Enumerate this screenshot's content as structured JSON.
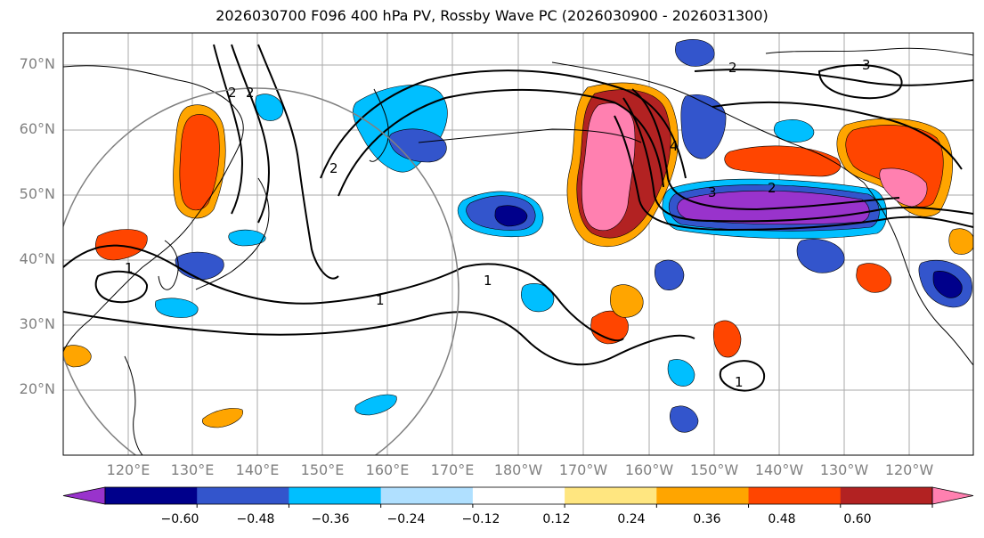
{
  "title": "2026030700 F096 400 hPa PV, Rossby Wave PC (2026030900 - 2026031300)",
  "latitude_labels": [
    "70°N",
    "60°N",
    "50°N",
    "40°N",
    "30°N",
    "20°N"
  ],
  "longitude_labels": [
    "120°E",
    "130°E",
    "140°E",
    "150°E",
    "160°E",
    "170°E",
    "180°W",
    "170°W",
    "160°W",
    "150°W",
    "140°W",
    "130°W",
    "120°W"
  ],
  "contour_labels": [
    "1",
    "1",
    "1",
    "1",
    "2",
    "2",
    "2",
    "2",
    "2",
    "3",
    "3",
    "4"
  ],
  "colorbar": {
    "ticks": [
      "−0.60",
      "−0.48",
      "−0.36",
      "−0.24",
      "−0.12",
      "0.12",
      "0.24",
      "0.36",
      "0.48",
      "0.60"
    ],
    "colors": [
      "#9933cc",
      "#00008b",
      "#3355cc",
      "#00bfff",
      "#b0e0ff",
      "#ffffff",
      "#ffe680",
      "#ffa500",
      "#ff4500",
      "#b22222",
      "#ff80b0"
    ]
  },
  "colors": {
    "purple": "#9933cc",
    "navy": "#00008b",
    "blue": "#3355cc",
    "cyan": "#00bfff",
    "lightblue": "#b0e0ff",
    "yellow": "#ffe680",
    "orange": "#ffa500",
    "redorange": "#ff4500",
    "darkred": "#b22222",
    "pink": "#ff80b0"
  }
}
